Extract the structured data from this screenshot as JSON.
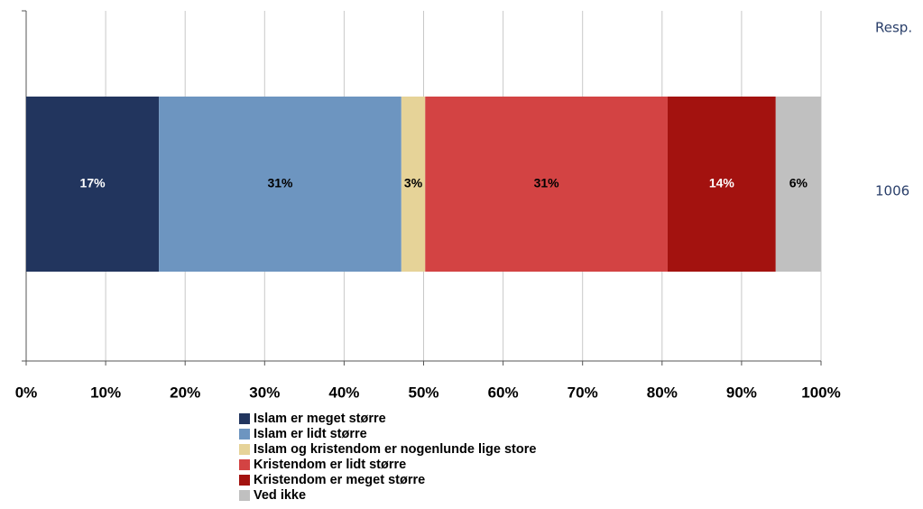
{
  "chart_data": {
    "type": "stacked-bar-horizontal",
    "categories": [
      null
    ],
    "series": [
      {
        "name": "Islam er meget større",
        "color": "#22355e",
        "label_color": "#ffffff",
        "values": [
          16.7
        ],
        "value_labels": [
          "17%"
        ]
      },
      {
        "name": "Islam er lidt større",
        "color": "#6d95c0",
        "label_color": "#000000",
        "values": [
          30.5
        ],
        "value_labels": [
          "31%"
        ]
      },
      {
        "name": "Islam og kristendom er nogenlunde lige store",
        "color": "#e6d398",
        "label_color": "#000000",
        "values": [
          3.0
        ],
        "value_labels": [
          "3%"
        ]
      },
      {
        "name": "Kristendom er lidt større",
        "color": "#d34343",
        "label_color": "#000000",
        "values": [
          30.5
        ],
        "value_labels": [
          "31%"
        ]
      },
      {
        "name": "Kristendom er meget større",
        "color": "#a3120f",
        "label_color": "#ffffff",
        "values": [
          13.6
        ],
        "value_labels": [
          "14%"
        ]
      },
      {
        "name": "Ved ikke",
        "color": "#c0c0c0",
        "label_color": "#000000",
        "values": [
          5.7
        ],
        "value_labels": [
          "6%"
        ]
      }
    ],
    "xlim": [
      0,
      100
    ],
    "xticks": [
      {
        "value": 0,
        "label": "0%"
      },
      {
        "value": 10,
        "label": "10%"
      },
      {
        "value": 20,
        "label": "20%"
      },
      {
        "value": 30,
        "label": "30%"
      },
      {
        "value": 40,
        "label": "40%"
      },
      {
        "value": 50,
        "label": "50%"
      },
      {
        "value": 60,
        "label": "60%"
      },
      {
        "value": 70,
        "label": "70%"
      },
      {
        "value": 80,
        "label": "80%"
      },
      {
        "value": 90,
        "label": "90%"
      },
      {
        "value": 100,
        "label": "100%"
      }
    ],
    "grid": true,
    "legend": "bottom",
    "resp_header": "Resp.",
    "resp_values": [
      1006
    ]
  }
}
